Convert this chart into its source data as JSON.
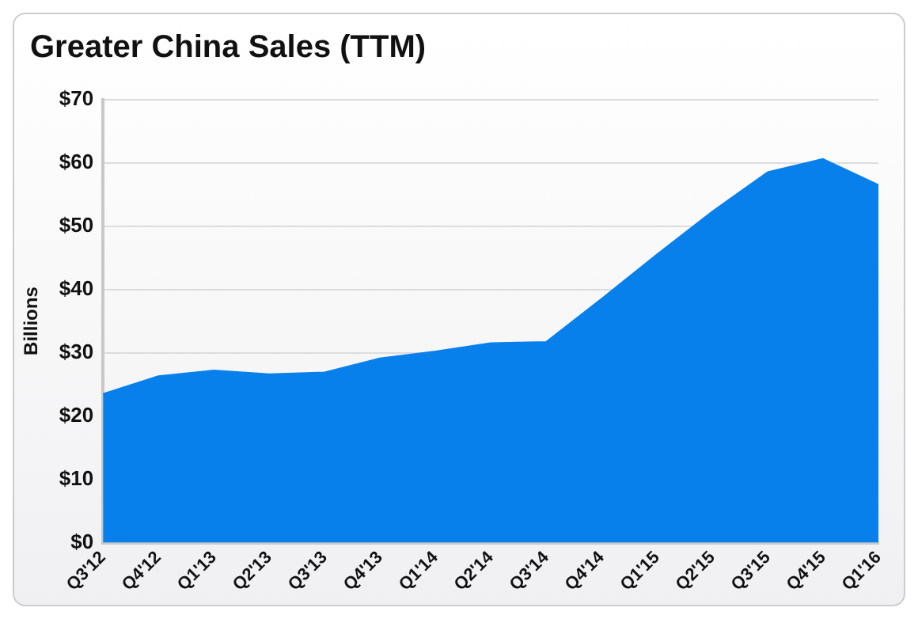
{
  "chart_data": {
    "type": "area",
    "title": "Greater China Sales (TTM)",
    "ylabel": "Billions",
    "categories": [
      "Q3'12",
      "Q4'12",
      "Q1'13",
      "Q2'13",
      "Q3'13",
      "Q4'13",
      "Q1'14",
      "Q2'14",
      "Q3'14",
      "Q4'14",
      "Q1'15",
      "Q2'15",
      "Q3'15",
      "Q4'15",
      "Q1'16"
    ],
    "series": [
      {
        "color": "#0880ec",
        "values": [
          23.5,
          26.3,
          27.2,
          26.6,
          26.9,
          29.1,
          30.2,
          31.5,
          31.7,
          38.5,
          45.5,
          52.3,
          58.5,
          60.6,
          56.5
        ]
      }
    ],
    "ylim": [
      0,
      70
    ],
    "yticks": [
      {
        "value": 0,
        "label": "$0"
      },
      {
        "value": 10,
        "label": "$10"
      },
      {
        "value": 20,
        "label": "$20"
      },
      {
        "value": 30,
        "label": "$30"
      },
      {
        "value": 40,
        "label": "$40"
      },
      {
        "value": 50,
        "label": "$50"
      },
      {
        "value": 60,
        "label": "$60"
      },
      {
        "value": 70,
        "label": "$70"
      }
    ],
    "grid": "y",
    "legend": false
  }
}
